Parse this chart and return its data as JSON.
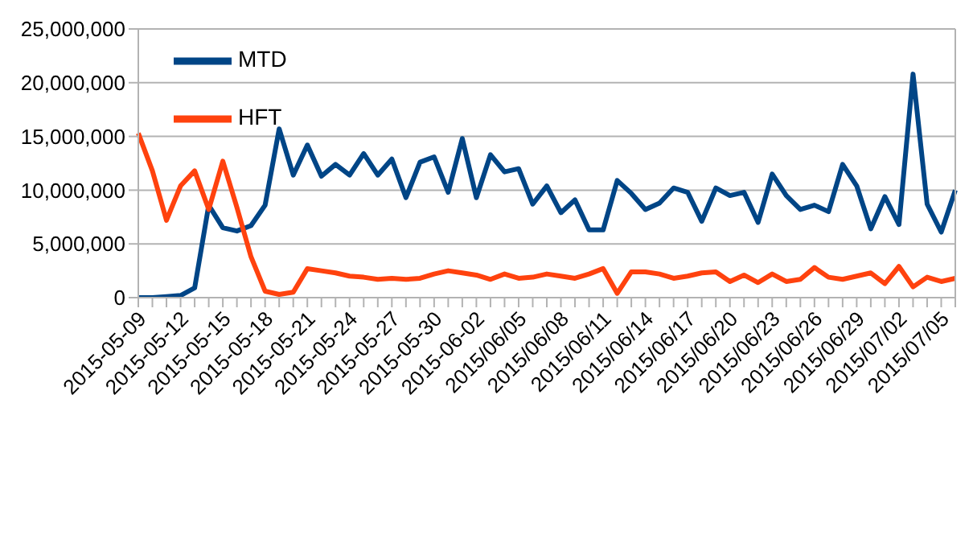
{
  "chart_data": {
    "type": "line",
    "categories": [
      "2015-05-09",
      null,
      null,
      "2015-05-12",
      null,
      null,
      "2015-05-15",
      null,
      null,
      "2015-05-18",
      null,
      null,
      "2015-05-21",
      null,
      null,
      "2015-05-24",
      null,
      null,
      "2015-05-27",
      null,
      null,
      "2015-05-30",
      null,
      null,
      "2015-06-02",
      null,
      null,
      "2015/06/05",
      null,
      null,
      "2015/06/08",
      null,
      null,
      "2015/06/11",
      null,
      null,
      "2015/06/14",
      null,
      null,
      "2015/06/17",
      null,
      null,
      "2015/06/20",
      null,
      null,
      "2015/06/23",
      null,
      null,
      "2015/06/26",
      null,
      null,
      "2015/06/29",
      null,
      null,
      "2015/07/02",
      null,
      null,
      "2015/07/05",
      null
    ],
    "series": [
      {
        "name": "MTD",
        "color": "#004586",
        "values": [
          0,
          0,
          100000,
          200000,
          900000,
          8600000,
          6500000,
          6200000,
          6700000,
          8600000,
          15700000,
          11400000,
          14200000,
          11300000,
          12400000,
          11400000,
          13400000,
          11400000,
          12900000,
          9300000,
          12600000,
          13100000,
          9800000,
          14800000,
          9300000,
          13300000,
          11700000,
          12000000,
          8700000,
          10400000,
          7900000,
          9100000,
          6300000,
          6300000,
          10900000,
          9700000,
          8200000,
          8800000,
          10200000,
          9800000,
          7100000,
          10200000,
          9500000,
          9800000,
          7000000,
          11500000,
          9500000,
          8200000,
          8600000,
          8000000,
          12400000,
          10400000,
          6400000,
          9400000,
          6800000,
          20800000,
          8700000,
          6100000,
          10000000
        ]
      },
      {
        "name": "HFT",
        "color": "#ff420e",
        "values": [
          15300000,
          11800000,
          7200000,
          10400000,
          11800000,
          8200000,
          12700000,
          8400000,
          3800000,
          600000,
          300000,
          500000,
          2700000,
          2500000,
          2300000,
          2000000,
          1900000,
          1700000,
          1800000,
          1700000,
          1800000,
          2200000,
          2500000,
          2300000,
          2100000,
          1700000,
          2200000,
          1800000,
          1900000,
          2200000,
          2000000,
          1800000,
          2200000,
          2700000,
          400000,
          2400000,
          2400000,
          2200000,
          1800000,
          2000000,
          2300000,
          2400000,
          1500000,
          2100000,
          1400000,
          2200000,
          1500000,
          1700000,
          2800000,
          1900000,
          1700000,
          2000000,
          2300000,
          1300000,
          2900000,
          1000000,
          1900000,
          1500000,
          1800000
        ]
      }
    ],
    "ylim": [
      0,
      25000000
    ],
    "yticks": [
      {
        "value": 0,
        "label": "0"
      },
      {
        "value": 5000000,
        "label": "5,000,000"
      },
      {
        "value": 10000000,
        "label": "10,000,000"
      },
      {
        "value": 15000000,
        "label": "15,000,000"
      },
      {
        "value": 20000000,
        "label": "20,000,000"
      },
      {
        "value": 25000000,
        "label": "25,000,000"
      }
    ],
    "grid": "y",
    "legend": "top left",
    "marker": "none",
    "line_style": "solid"
  }
}
